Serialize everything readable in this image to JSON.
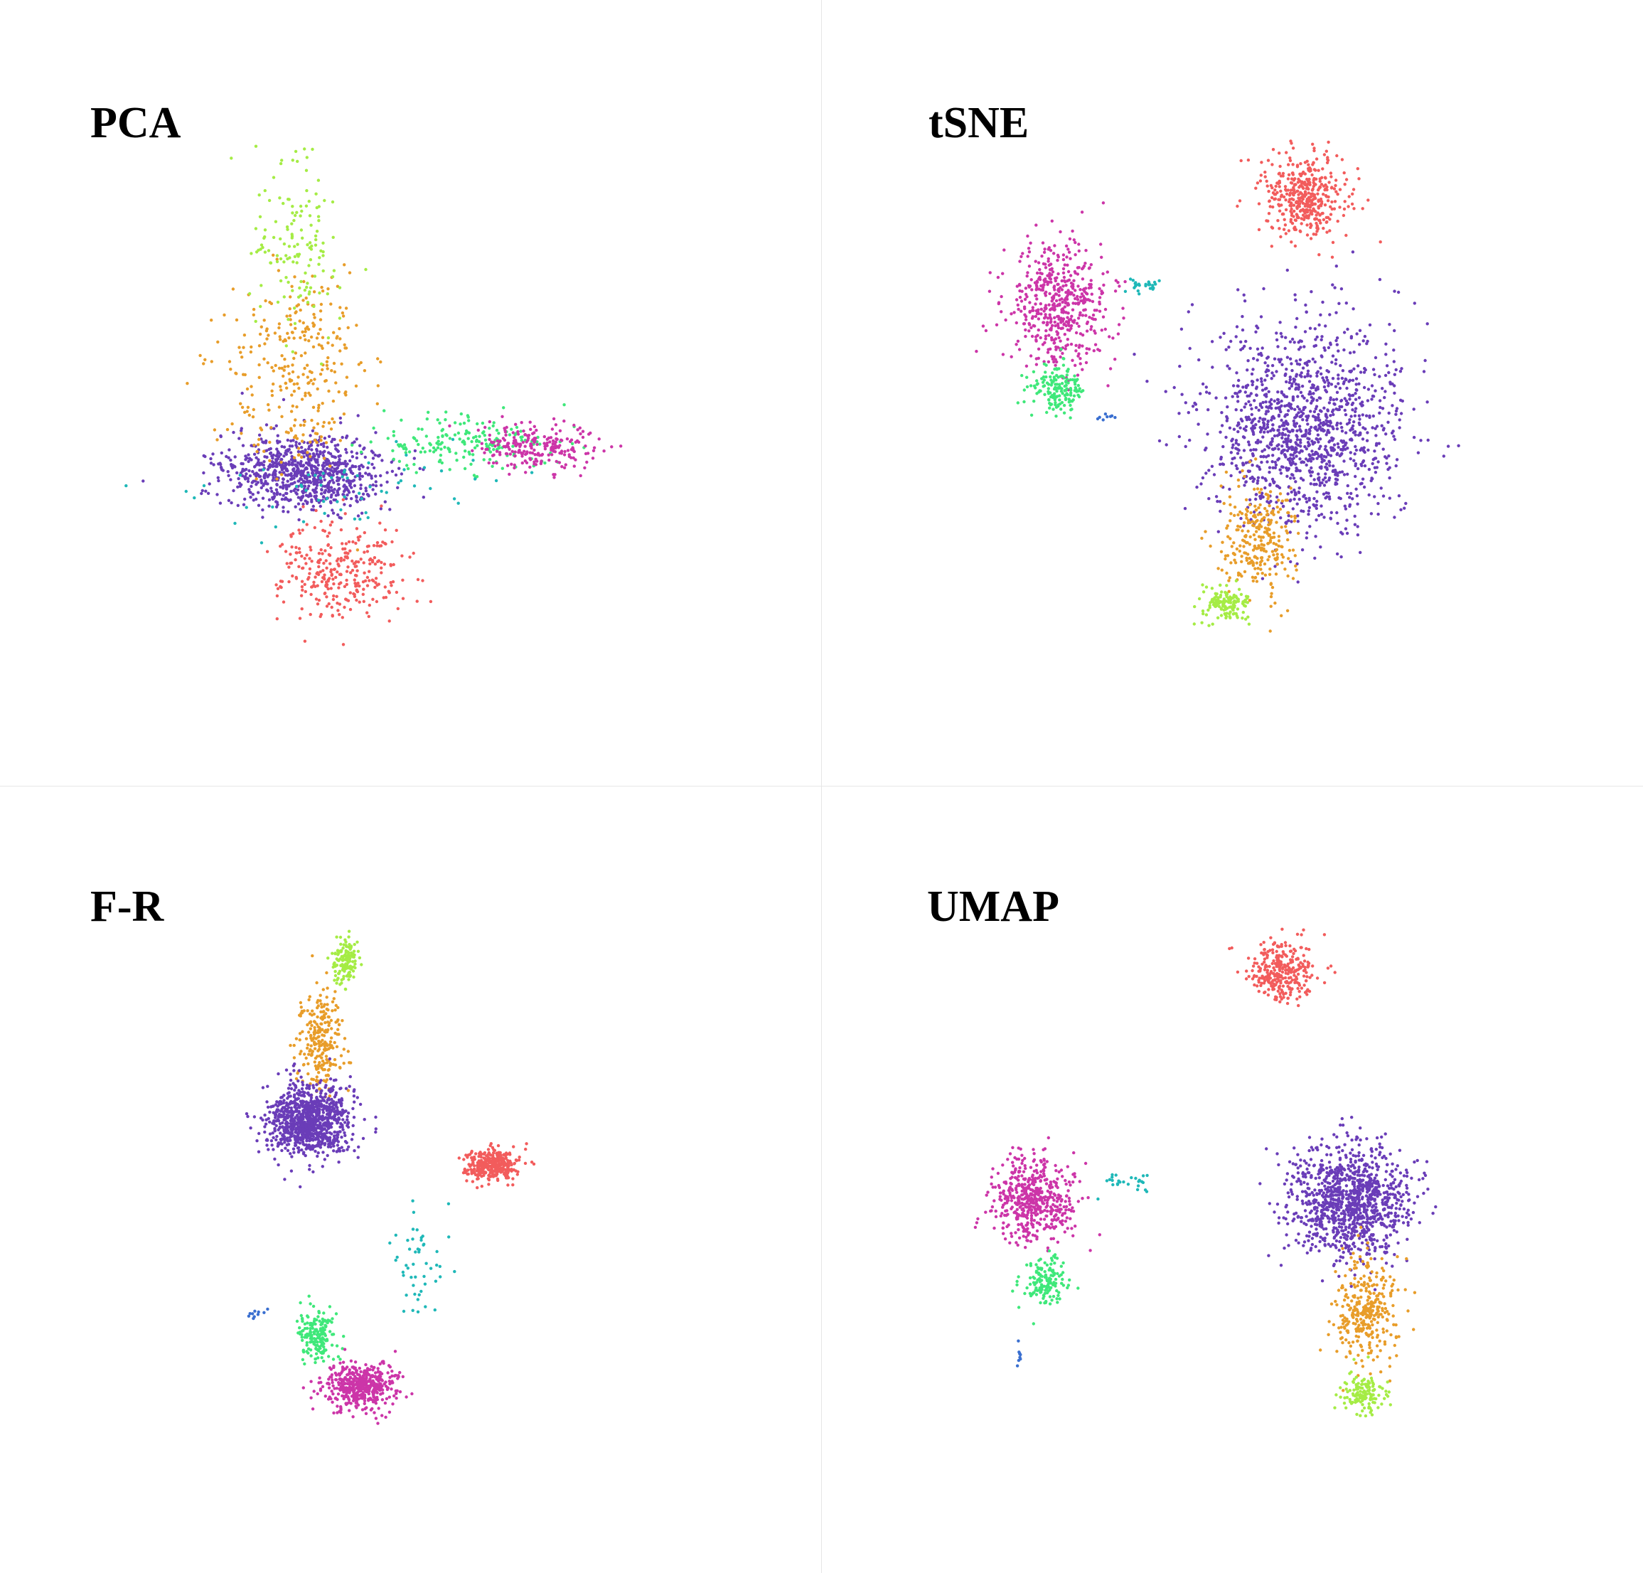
{
  "colors": {
    "red": "#f25c5c",
    "purple": "#6a3db8",
    "orange": "#e89d2a",
    "lime": "#a5ec45",
    "green": "#3fe87a",
    "magenta": "#cc35a8",
    "cyan": "#1fb8b8",
    "blue": "#3a6fd0"
  },
  "chart_data": [
    {
      "type": "scatter",
      "title": "PCA",
      "clusters": [
        {
          "color": "purple",
          "center": [
            290,
            452
          ],
          "spread": [
            38,
            18
          ],
          "n": 850
        },
        {
          "color": "orange",
          "center": [
            285,
            355
          ],
          "spread": [
            34,
            50
          ],
          "n": 300
        },
        {
          "color": "lime",
          "center": [
            285,
            240
          ],
          "spread": [
            20,
            42
          ],
          "n": 140
        },
        {
          "color": "green",
          "center": [
            445,
            425
          ],
          "spread": [
            45,
            13
          ],
          "n": 190
        },
        {
          "color": "magenta",
          "center": [
            512,
            428
          ],
          "spread": [
            28,
            11
          ],
          "n": 230
        },
        {
          "color": "cyan",
          "center": [
            330,
            470
          ],
          "spread": [
            70,
            20
          ],
          "n": 60
        },
        {
          "color": "red",
          "center": [
            325,
            548
          ],
          "spread": [
            30,
            24
          ],
          "n": 300
        }
      ]
    },
    {
      "type": "scatter",
      "title": "tSNE",
      "clusters": [
        {
          "color": "red",
          "center": [
            1245,
            188
          ],
          "spread": [
            20,
            20
          ],
          "n": 420
        },
        {
          "color": "magenta",
          "center": [
            1010,
            290
          ],
          "spread": [
            26,
            28
          ],
          "n": 520
        },
        {
          "color": "green",
          "center": [
            1010,
            372
          ],
          "spread": [
            13,
            11
          ],
          "n": 160
        },
        {
          "color": "cyan",
          "center": [
            1090,
            273
          ],
          "spread": [
            12,
            3
          ],
          "n": 28
        },
        {
          "color": "blue",
          "center": [
            1055,
            398
          ],
          "spread": [
            4,
            2
          ],
          "n": 8
        },
        {
          "color": "purple",
          "center": [
            1245,
            410
          ],
          "spread": [
            45,
            48
          ],
          "n": 1300
        },
        {
          "color": "orange",
          "center": [
            1200,
            515
          ],
          "spread": [
            17,
            27
          ],
          "n": 280
        },
        {
          "color": "lime",
          "center": [
            1172,
            578
          ],
          "spread": [
            10,
            9
          ],
          "n": 150
        }
      ]
    },
    {
      "type": "scatter",
      "title": "F-R",
      "clusters": [
        {
          "color": "lime",
          "center": [
            330,
            920
          ],
          "spread": [
            6,
            12
          ],
          "n": 140
        },
        {
          "color": "orange",
          "center": [
            305,
            1000
          ],
          "spread": [
            10,
            24
          ],
          "n": 250
        },
        {
          "color": "purple",
          "center": [
            295,
            1072
          ],
          "spread": [
            20,
            17
          ],
          "n": 1000
        },
        {
          "color": "red",
          "center": [
            470,
            1115
          ],
          "spread": [
            12,
            7
          ],
          "n": 340
        },
        {
          "color": "cyan",
          "center": [
            400,
            1210
          ],
          "spread": [
            14,
            32
          ],
          "n": 50
        },
        {
          "color": "green",
          "center": [
            302,
            1278
          ],
          "spread": [
            8,
            12
          ],
          "n": 180
        },
        {
          "color": "magenta",
          "center": [
            345,
            1328
          ],
          "spread": [
            17,
            11
          ],
          "n": 480
        },
        {
          "color": "blue",
          "center": [
            245,
            1258
          ],
          "spread": [
            5,
            2
          ],
          "n": 10
        }
      ]
    },
    {
      "type": "scatter",
      "title": "UMAP",
      "clusters": [
        {
          "color": "red",
          "center": [
            1225,
            930
          ],
          "spread": [
            16,
            14
          ],
          "n": 300
        },
        {
          "color": "magenta",
          "center": [
            985,
            1148
          ],
          "spread": [
            20,
            20
          ],
          "n": 520
        },
        {
          "color": "green",
          "center": [
            998,
            1225
          ],
          "spread": [
            10,
            11
          ],
          "n": 150
        },
        {
          "color": "cyan",
          "center": [
            1078,
            1132
          ],
          "spread": [
            14,
            5
          ],
          "n": 26
        },
        {
          "color": "blue",
          "center": [
            973,
            1298
          ],
          "spread": [
            2,
            5
          ],
          "n": 9
        },
        {
          "color": "purple",
          "center": [
            1290,
            1150
          ],
          "spread": [
            28,
            26
          ],
          "n": 1100
        },
        {
          "color": "orange",
          "center": [
            1305,
            1255
          ],
          "spread": [
            15,
            26
          ],
          "n": 320
        },
        {
          "color": "lime",
          "center": [
            1302,
            1335
          ],
          "spread": [
            9,
            9
          ],
          "n": 140
        }
      ]
    }
  ]
}
